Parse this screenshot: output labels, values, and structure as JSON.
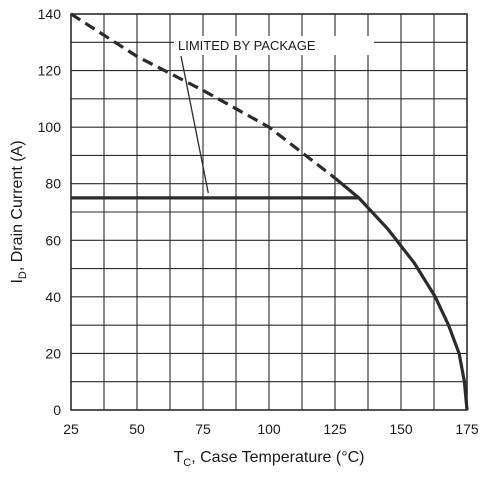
{
  "chart_data": {
    "type": "line",
    "xlabel": {
      "main": "T",
      "sub": "C",
      "rest": ", Case Temperature  (°C)"
    },
    "ylabel": {
      "main": "I",
      "sub": "D",
      "rest": ", Drain Current (A)"
    },
    "xlim": [
      25,
      175
    ],
    "ylim": [
      0,
      140
    ],
    "x_ticks": [
      25,
      50,
      75,
      100,
      125,
      150,
      175
    ],
    "y_ticks": [
      0,
      20,
      40,
      60,
      80,
      100,
      120,
      140
    ],
    "grid": true,
    "series": [
      {
        "style": "dashed",
        "x": [
          25,
          50,
          75,
          100,
          125
        ],
        "y": [
          140,
          125,
          113,
          100,
          82
        ]
      },
      {
        "style": "solid",
        "x": [
          25,
          60,
          90,
          120,
          134
        ],
        "y": [
          75,
          75,
          75,
          75,
          75
        ]
      },
      {
        "style": "solid",
        "x": [
          125,
          134,
          145,
          155,
          163,
          168,
          172,
          174,
          175
        ],
        "y": [
          82,
          75,
          64,
          52,
          40,
          30,
          20,
          10,
          0
        ]
      }
    ],
    "annotations": [
      {
        "text": "LIMITED BY PACKAGE",
        "points_to": {
          "x": 77,
          "y": 76
        }
      }
    ],
    "line_color": "#2b2b2b",
    "grid_color": "#2b2b2b"
  }
}
